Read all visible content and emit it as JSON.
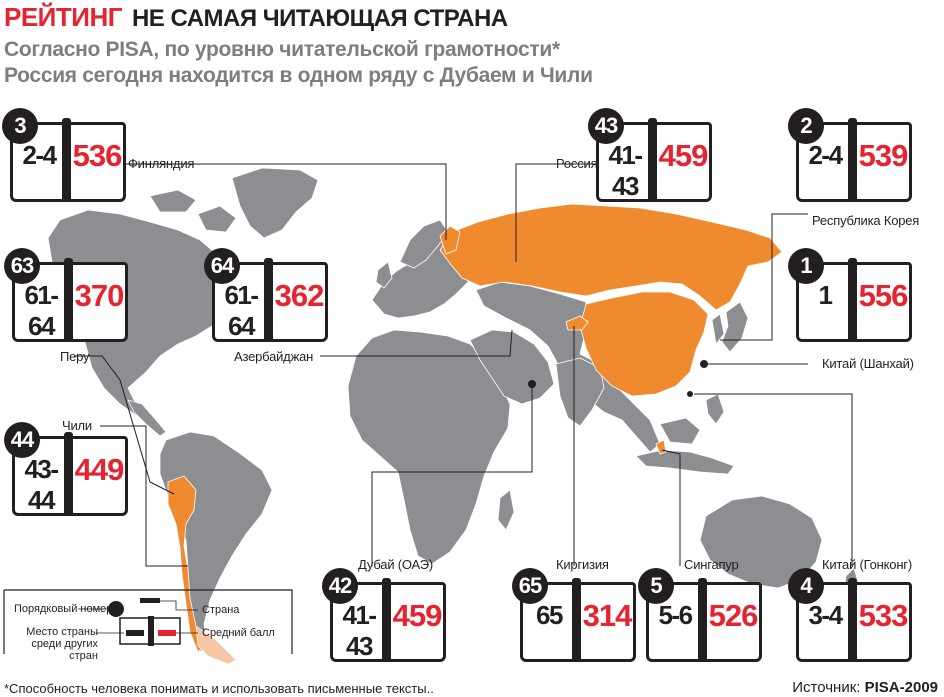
{
  "header": {
    "kicker": "РЕЙТИНГ",
    "title": "НЕ САМАЯ ЧИТАЮЩАЯ СТРАНА"
  },
  "subtitle": {
    "line1": "Согласно PISA, по уровню читательской грамотности*",
    "line2": "Россия сегодня находится в одном ряду с Дубаем и Чили"
  },
  "colors": {
    "highlight": "#f08a2e",
    "land": "#8c8e91",
    "accent_red": "#e8222f",
    "dark": "#231f20"
  },
  "countries": {
    "finland": {
      "order": "3",
      "place": "2-4",
      "score": "536",
      "name": "Финляндия"
    },
    "russia": {
      "order": "43",
      "place": "41-43",
      "score": "459",
      "name": "Россия"
    },
    "korea": {
      "order": "2",
      "place": "2-4",
      "score": "539",
      "name": "Республика Корея"
    },
    "peru": {
      "order": "63",
      "place": "61-64",
      "score": "370",
      "name": "Перу"
    },
    "azerbaijan": {
      "order": "64",
      "place": "61-64",
      "score": "362",
      "name": "Азербайджан"
    },
    "shanghai": {
      "order": "1",
      "place": "1",
      "score": "556",
      "name": "Китай (Шанхай)"
    },
    "chile": {
      "order": "44",
      "place": "43-44",
      "score": "449",
      "name": "Чили"
    },
    "dubai": {
      "order": "42",
      "place": "41-43",
      "score": "459",
      "name": "Дубай (ОАЭ)"
    },
    "kyrgyzstan": {
      "order": "65",
      "place": "65",
      "score": "314",
      "name": "Киргизия"
    },
    "singapore": {
      "order": "5",
      "place": "5-6",
      "score": "526",
      "name": "Сингапур"
    },
    "hongkong": {
      "order": "4",
      "place": "3-4",
      "score": "533",
      "name": "Китай (Гонконг)"
    }
  },
  "legend": {
    "order": "Порядковый номер",
    "country": "Страна",
    "place": "Место страны среди других стран",
    "score": "Средний балл"
  },
  "footnote": "*Способность человека понимать и использовать письменные тексты..",
  "source": {
    "label": "Источник: ",
    "value": "PISA-2009"
  }
}
